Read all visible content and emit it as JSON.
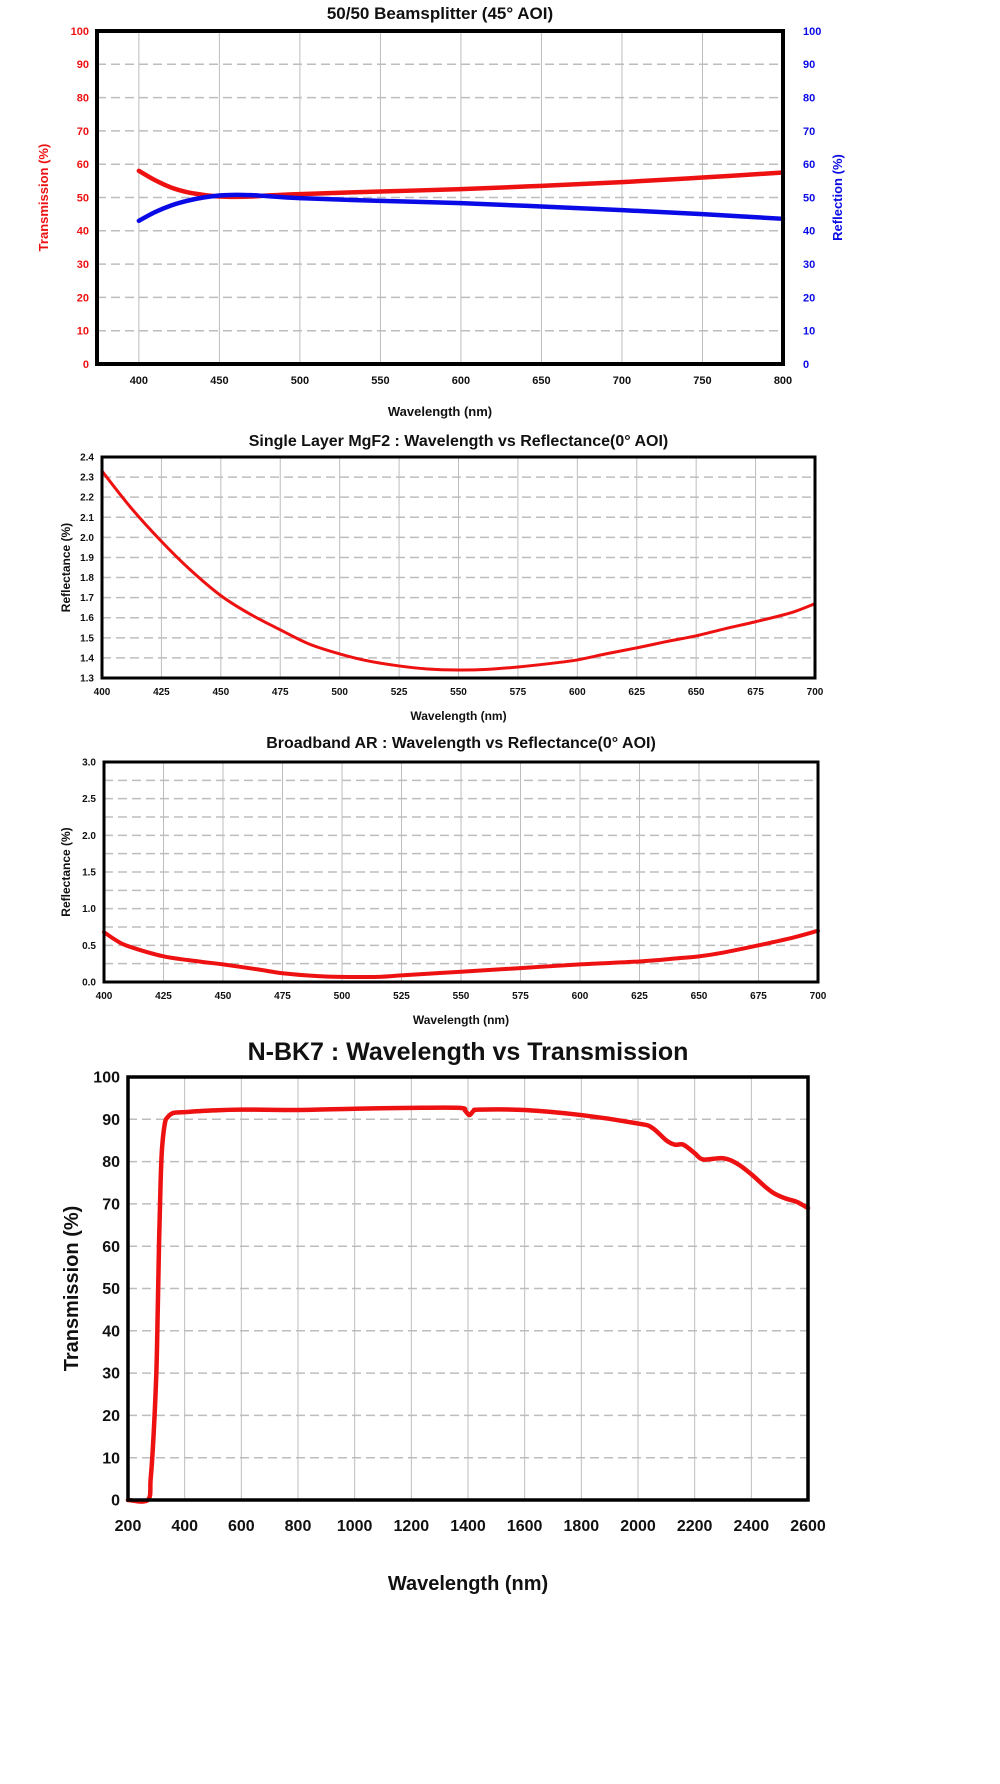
{
  "colors": {
    "red": "#ee1111",
    "blue": "#0a0ae6",
    "axis_text": "#111111",
    "grid": "#bdbdbd"
  },
  "chart_data": [
    {
      "type": "line",
      "title": "50/50  Beamsplitter (45° AOI)",
      "xlabel": "Wavelength (nm)",
      "ylabel": "Transmission (%)",
      "y2label": "Reflection (%)",
      "xlim": [
        374,
        800
      ],
      "ylim": [
        0,
        100
      ],
      "y2lim": [
        0,
        100
      ],
      "grid": true,
      "xticks": [
        "400",
        "450",
        "500",
        "550",
        "600",
        "650",
        "700",
        "750",
        "800"
      ],
      "yticks": [
        "0",
        "10",
        "20",
        "30",
        "40",
        "50",
        "60",
        "70",
        "80",
        "90",
        "100"
      ],
      "y2ticks": [
        "0",
        "10",
        "20",
        "30",
        "40",
        "50",
        "60",
        "70",
        "80",
        "90",
        "100"
      ],
      "series": [
        {
          "name": "Transmission",
          "color": "#ee1111",
          "axis": "left",
          "x": [
            400,
            410,
            420,
            430,
            440,
            450,
            460,
            470,
            480,
            500,
            550,
            600,
            650,
            700,
            750,
            800
          ],
          "y": [
            58,
            55.2,
            53,
            51.6,
            50.8,
            50.3,
            50.2,
            50.3,
            50.6,
            51,
            51.8,
            52.5,
            53.5,
            54.6,
            56,
            57.5
          ]
        },
        {
          "name": "Reflection",
          "color": "#0a0ae6",
          "axis": "right",
          "x": [
            400,
            410,
            420,
            430,
            440,
            450,
            460,
            470,
            480,
            500,
            550,
            600,
            650,
            700,
            750,
            800
          ],
          "y": [
            43,
            45.6,
            47.6,
            49,
            50,
            50.6,
            50.8,
            50.7,
            50.4,
            49.8,
            49,
            48.3,
            47.3,
            46.2,
            45,
            43.6
          ]
        }
      ]
    },
    {
      "type": "line",
      "title": "Single Layer MgF2 : Wavelength vs Reflectance(0° AOI)",
      "xlabel": "Wavelength (nm)",
      "ylabel": "Reflectance (%)",
      "xlim": [
        400,
        700
      ],
      "ylim": [
        1.3,
        2.4
      ],
      "grid": true,
      "xticks": [
        "400",
        "425",
        "450",
        "475",
        "500",
        "525",
        "550",
        "575",
        "600",
        "625",
        "650",
        "675",
        "700"
      ],
      "yticks": [
        "1.3",
        "1.4",
        "1.5",
        "1.6",
        "1.7",
        "1.8",
        "1.9",
        "2.0",
        "2.1",
        "2.2",
        "2.3",
        "2.4"
      ],
      "series": [
        {
          "name": "Reflectance",
          "color": "#ee1111",
          "x": [
            400,
            412,
            425,
            437,
            450,
            462,
            475,
            487,
            500,
            512,
            525,
            537,
            550,
            562,
            575,
            587,
            600,
            612,
            625,
            637,
            650,
            662,
            675,
            690,
            700
          ],
          "y": [
            2.33,
            2.15,
            1.98,
            1.84,
            1.71,
            1.62,
            1.54,
            1.47,
            1.42,
            1.385,
            1.36,
            1.345,
            1.34,
            1.343,
            1.355,
            1.37,
            1.39,
            1.42,
            1.45,
            1.48,
            1.51,
            1.545,
            1.58,
            1.625,
            1.67
          ]
        }
      ]
    },
    {
      "type": "line",
      "title": "Broadband AR : Wavelength vs Reflectance(0° AOI)",
      "xlabel": "Wavelength (nm)",
      "ylabel": "Reflectance (%)",
      "xlim": [
        400,
        700
      ],
      "ylim": [
        0,
        3.0
      ],
      "grid": true,
      "xticks": [
        "400",
        "425",
        "450",
        "475",
        "500",
        "525",
        "550",
        "575",
        "600",
        "625",
        "650",
        "675",
        "700"
      ],
      "yticks": [
        "0.0",
        "0.5",
        "1.0",
        "1.5",
        "2.0",
        "2.5",
        "3.0"
      ],
      "series": [
        {
          "name": "Reflectance",
          "color": "#ee1111",
          "x": [
            400,
            405,
            410,
            425,
            440,
            450,
            465,
            475,
            490,
            500,
            515,
            525,
            550,
            575,
            600,
            625,
            640,
            650,
            660,
            675,
            690,
            700
          ],
          "y": [
            0.68,
            0.57,
            0.49,
            0.35,
            0.28,
            0.24,
            0.17,
            0.12,
            0.08,
            0.07,
            0.07,
            0.09,
            0.14,
            0.19,
            0.24,
            0.28,
            0.32,
            0.35,
            0.4,
            0.5,
            0.61,
            0.7
          ]
        }
      ]
    },
    {
      "type": "line",
      "title": "N-BK7 : Wavelength vs Transmission",
      "xlabel": "Wavelength (nm)",
      "ylabel": "Transmission (%)",
      "xlim": [
        200,
        2600
      ],
      "ylim": [
        0,
        100
      ],
      "grid": true,
      "xticks": [
        "200",
        "400",
        "600",
        "800",
        "1000",
        "1200",
        "1400",
        "1600",
        "1800",
        "2000",
        "2200",
        "2400",
        "2600"
      ],
      "yticks": [
        "0",
        "10",
        "20",
        "30",
        "40",
        "50",
        "60",
        "70",
        "80",
        "90",
        "100"
      ],
      "series": [
        {
          "name": "Transmission",
          "color": "#ee1111",
          "x": [
            200,
            270,
            280,
            290,
            300,
            305,
            310,
            315,
            320,
            330,
            340,
            360,
            400,
            500,
            600,
            800,
            1000,
            1200,
            1370,
            1390,
            1405,
            1420,
            1440,
            1600,
            1800,
            2000,
            2050,
            2100,
            2130,
            2160,
            2200,
            2230,
            2300,
            2350,
            2400,
            2450,
            2480,
            2520,
            2560,
            2600
          ],
          "y": [
            0,
            0,
            5,
            15,
            30,
            45,
            62,
            75,
            83,
            89,
            90.5,
            91.5,
            91.7,
            92.1,
            92.3,
            92.2,
            92.5,
            92.7,
            92.7,
            92,
            91,
            92,
            92.3,
            92.2,
            91,
            89,
            88,
            85,
            84,
            84,
            82,
            80.5,
            80.8,
            79.5,
            77,
            74,
            72.5,
            71.3,
            70.5,
            69
          ]
        }
      ]
    }
  ]
}
